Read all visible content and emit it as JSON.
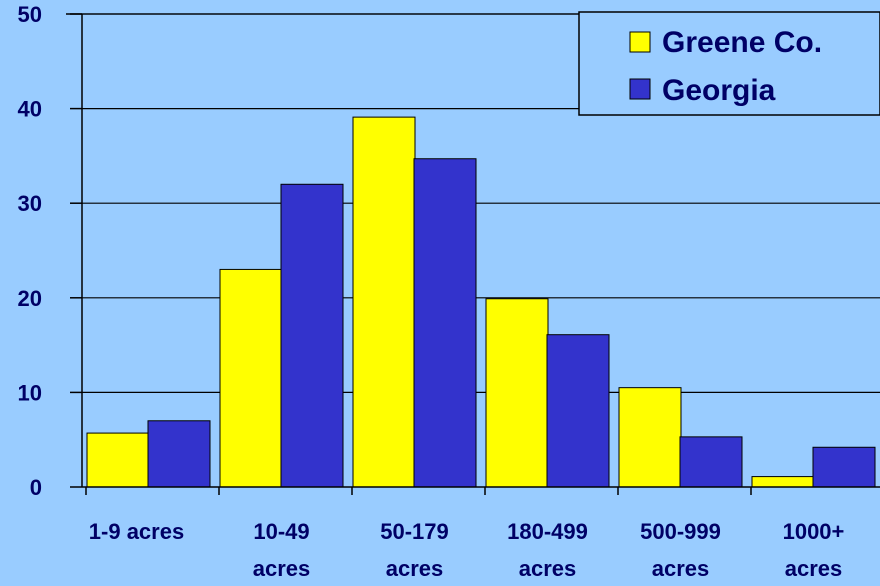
{
  "chart_data": {
    "type": "bar",
    "categories": [
      [
        "1-9 acres"
      ],
      [
        "10-49",
        "acres"
      ],
      [
        "50-179",
        "acres"
      ],
      [
        "180-499",
        "acres"
      ],
      [
        "500-999",
        "acres"
      ],
      [
        "1000+",
        "acres"
      ]
    ],
    "series": [
      {
        "name": "Greene Co.",
        "color": "#ffff00",
        "values": [
          5.7,
          23.0,
          39.1,
          19.9,
          10.5,
          1.1
        ]
      },
      {
        "name": "Georgia",
        "color": "#3333cc",
        "values": [
          7.0,
          32.0,
          34.7,
          16.1,
          5.3,
          4.2
        ]
      }
    ],
    "ylim": [
      0,
      50
    ],
    "yticks": [
      0,
      10,
      20,
      30,
      40,
      50
    ],
    "grid": true,
    "legend": "top-right",
    "title": "",
    "xlabel": "",
    "ylabel": ""
  }
}
